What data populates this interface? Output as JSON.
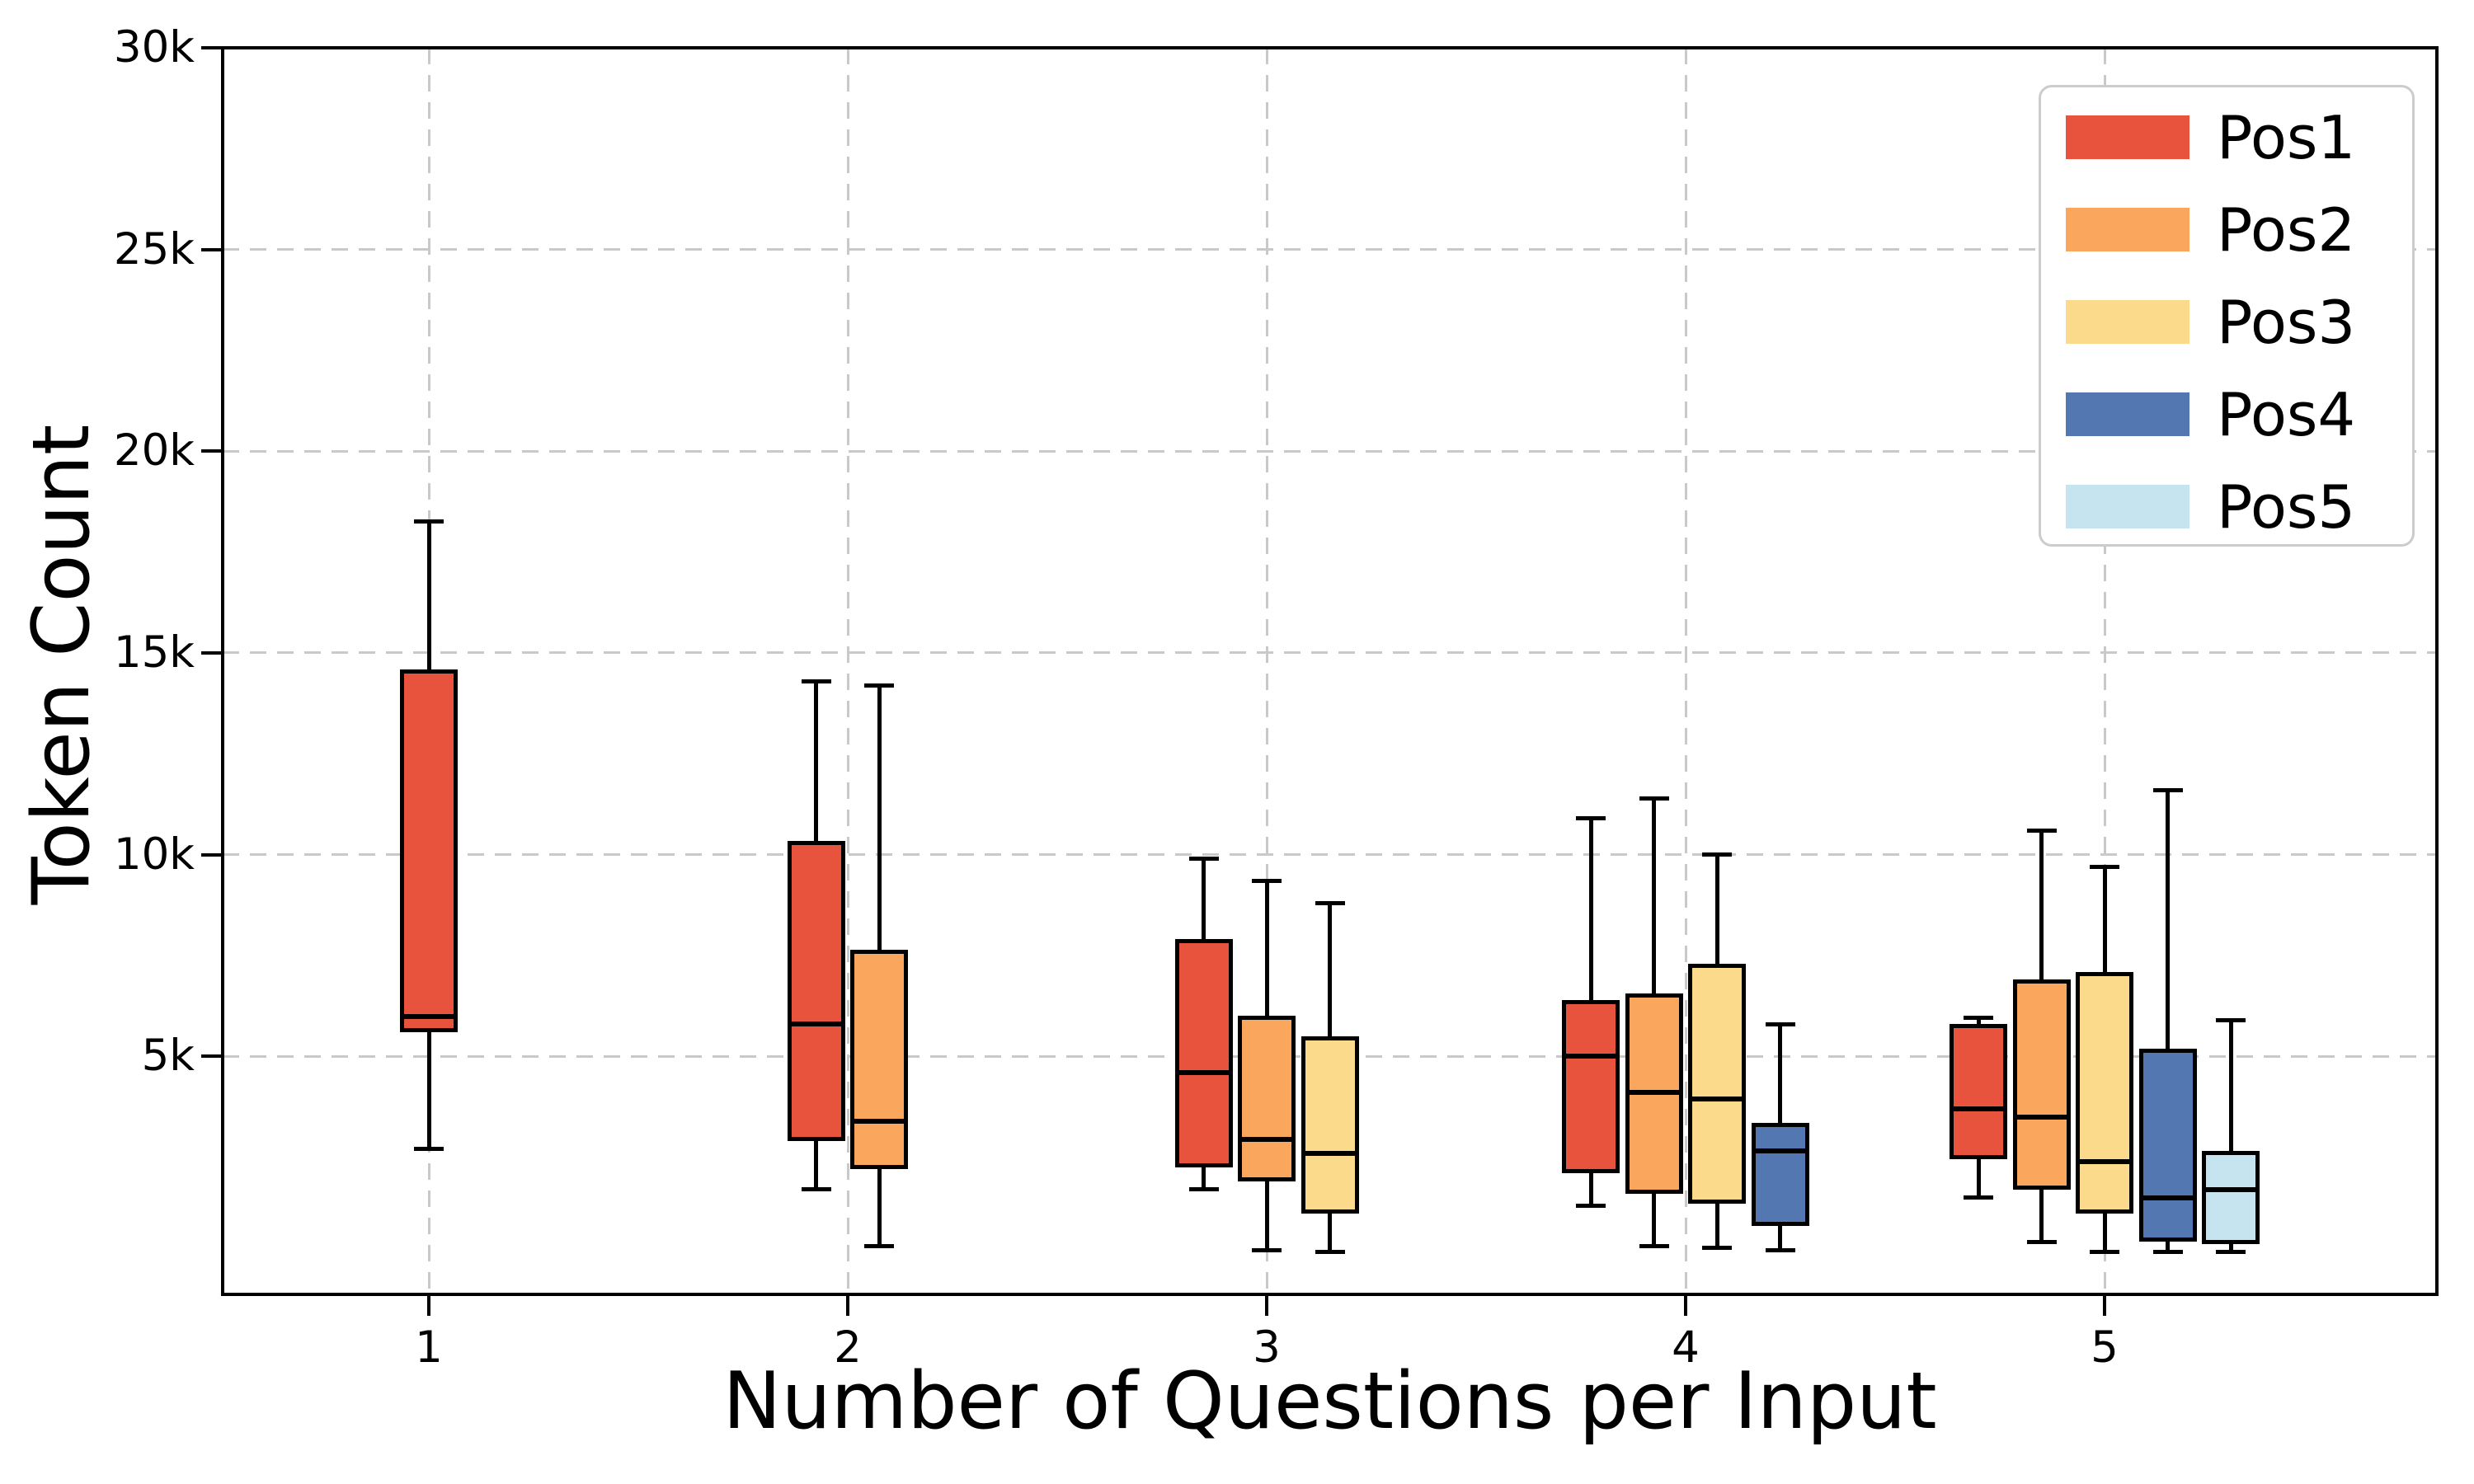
{
  "figure": {
    "background": "#ffffff"
  },
  "chart_data": {
    "type": "boxplot",
    "title": "",
    "xlabel": "Number of Questions per Input",
    "ylabel": "Token Count",
    "categories": [
      "1",
      "2",
      "3",
      "4",
      "5"
    ],
    "ylim": [
      -900,
      30000
    ],
    "y_ticks": [
      {
        "value": 5000,
        "label": "5k"
      },
      {
        "value": 10000,
        "label": "10k"
      },
      {
        "value": 15000,
        "label": "15k"
      },
      {
        "value": 20000,
        "label": "20k"
      },
      {
        "value": 25000,
        "label": "25k"
      },
      {
        "value": 30000,
        "label": "30k"
      }
    ],
    "grid": {
      "horizontal": true,
      "vertical": true,
      "style": "dashed",
      "color": "#c9c9c9"
    },
    "legend": {
      "position": "upper-right",
      "entries": [
        {
          "label": "Pos1",
          "color": "#e8533e"
        },
        {
          "label": "Pos2",
          "color": "#faa65c"
        },
        {
          "label": "Pos3",
          "color": "#fbdb8b"
        },
        {
          "label": "Pos4",
          "color": "#5377b0"
        },
        {
          "label": "Pos5",
          "color": "#c6e3f0"
        }
      ]
    },
    "series": [
      {
        "name": "Pos1",
        "color": "#e8533e",
        "boxes": [
          {
            "group": "1",
            "whisker_low": 2700,
            "q1": 5600,
            "median": 5980,
            "q3": 14600,
            "whisker_high": 18250
          },
          {
            "group": "2",
            "whisker_low": 1700,
            "q1": 2900,
            "median": 5800,
            "q3": 10350,
            "whisker_high": 14300
          },
          {
            "group": "3",
            "whisker_low": 1700,
            "q1": 2250,
            "median": 4600,
            "q3": 7900,
            "whisker_high": 9900
          },
          {
            "group": "4",
            "whisker_low": 1300,
            "q1": 2100,
            "median": 5000,
            "q3": 6400,
            "whisker_high": 10900
          },
          {
            "group": "5",
            "whisker_low": 1500,
            "q1": 2450,
            "median": 3700,
            "q3": 5800,
            "whisker_high": 5950
          }
        ]
      },
      {
        "name": "Pos2",
        "color": "#faa65c",
        "boxes": [
          {
            "group": "2",
            "whisker_low": 300,
            "q1": 2200,
            "median": 3400,
            "q3": 7650,
            "whisker_high": 14200
          },
          {
            "group": "3",
            "whisker_low": 200,
            "q1": 1900,
            "median": 2950,
            "q3": 6000,
            "whisker_high": 9350
          },
          {
            "group": "4",
            "whisker_low": 300,
            "q1": 1600,
            "median": 4100,
            "q3": 6550,
            "whisker_high": 11400
          },
          {
            "group": "5",
            "whisker_low": 400,
            "q1": 1700,
            "median": 3500,
            "q3": 6900,
            "whisker_high": 10600
          }
        ]
      },
      {
        "name": "Pos3",
        "color": "#fbdb8b",
        "boxes": [
          {
            "group": "3",
            "whisker_low": 150,
            "q1": 1100,
            "median": 2600,
            "q3": 5500,
            "whisker_high": 8800
          },
          {
            "group": "4",
            "whisker_low": 250,
            "q1": 1350,
            "median": 3950,
            "q3": 7300,
            "whisker_high": 10000
          },
          {
            "group": "5",
            "whisker_low": 150,
            "q1": 1100,
            "median": 2400,
            "q3": 7100,
            "whisker_high": 9700
          }
        ]
      },
      {
        "name": "Pos4",
        "color": "#5377b0",
        "boxes": [
          {
            "group": "4",
            "whisker_low": 200,
            "q1": 800,
            "median": 2650,
            "q3": 3350,
            "whisker_high": 5800
          },
          {
            "group": "5",
            "whisker_low": 150,
            "q1": 400,
            "median": 1500,
            "q3": 5200,
            "whisker_high": 11600
          }
        ]
      },
      {
        "name": "Pos5",
        "color": "#c6e3f0",
        "boxes": [
          {
            "group": "5",
            "whisker_low": 150,
            "q1": 350,
            "median": 1700,
            "q3": 2650,
            "whisker_high": 5900
          }
        ]
      }
    ]
  }
}
